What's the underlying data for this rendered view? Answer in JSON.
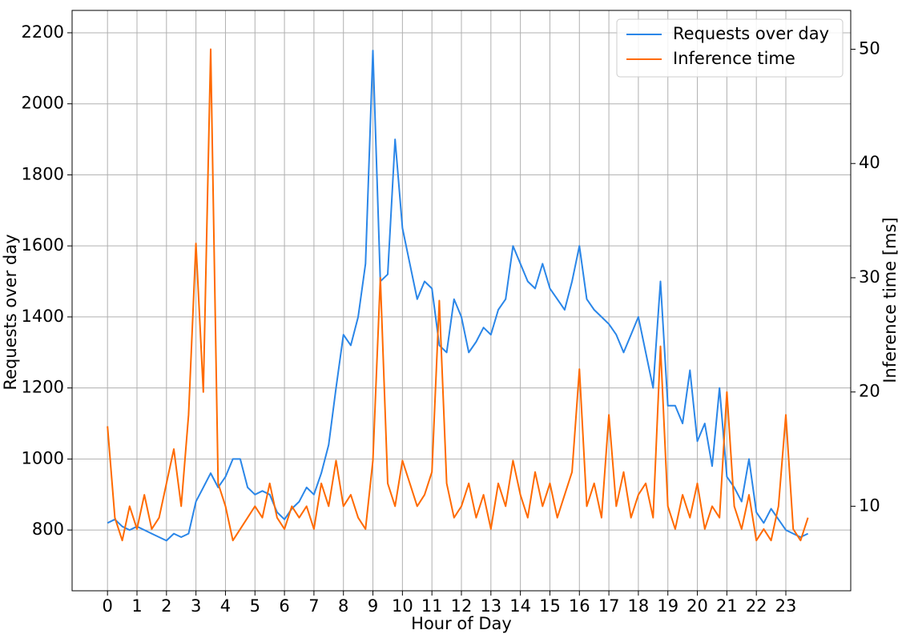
{
  "chart_data": {
    "type": "line",
    "x_label": "Hour of Day",
    "y_label": "Requests over day",
    "y2_label": "Inference time [ms]",
    "x": [
      0,
      0.25,
      0.5,
      0.75,
      1,
      1.25,
      1.5,
      1.75,
      2,
      2.25,
      2.5,
      2.75,
      3,
      3.25,
      3.5,
      3.75,
      4,
      4.25,
      4.5,
      4.75,
      5,
      5.25,
      5.5,
      5.75,
      6,
      6.25,
      6.5,
      6.75,
      7,
      7.25,
      7.5,
      7.75,
      8,
      8.25,
      8.5,
      8.75,
      9,
      9.25,
      9.5,
      9.75,
      10,
      10.25,
      10.5,
      10.75,
      11,
      11.25,
      11.5,
      11.75,
      12,
      12.25,
      12.5,
      12.75,
      13,
      13.25,
      13.5,
      13.75,
      14,
      14.25,
      14.5,
      14.75,
      15,
      15.25,
      15.5,
      15.75,
      16,
      16.25,
      16.5,
      16.75,
      17,
      17.25,
      17.5,
      17.75,
      18,
      18.25,
      18.5,
      18.75,
      19,
      19.25,
      19.5,
      19.75,
      20,
      20.25,
      20.5,
      20.75,
      21,
      21.25,
      21.5,
      21.75,
      22,
      22.25,
      22.5,
      22.75,
      23,
      23.25,
      23.5,
      23.75
    ],
    "series": [
      {
        "name": "Requests over day",
        "color": "#2a86e8",
        "axis": "y",
        "values": [
          820,
          830,
          810,
          800,
          810,
          800,
          790,
          780,
          770,
          790,
          780,
          790,
          880,
          920,
          960,
          920,
          950,
          1000,
          1000,
          920,
          900,
          910,
          900,
          850,
          830,
          860,
          880,
          920,
          900,
          960,
          1040,
          1200,
          1350,
          1320,
          1400,
          1550,
          2150,
          1500,
          1520,
          1900,
          1650,
          1550,
          1450,
          1500,
          1480,
          1320,
          1300,
          1450,
          1400,
          1300,
          1330,
          1370,
          1350,
          1420,
          1450,
          1600,
          1550,
          1500,
          1480,
          1550,
          1480,
          1450,
          1420,
          1500,
          1600,
          1450,
          1420,
          1400,
          1380,
          1350,
          1300,
          1350,
          1400,
          1300,
          1200,
          1500,
          1150,
          1150,
          1100,
          1250,
          1050,
          1100,
          980,
          1200,
          950,
          920,
          880,
          1000,
          850,
          820,
          860,
          830,
          800,
          790,
          780,
          790
        ]
      },
      {
        "name": "Inference time",
        "color": "#ff6a00",
        "axis": "y2",
        "values": [
          17,
          9,
          7,
          10,
          8,
          11,
          8,
          9,
          12,
          15,
          10,
          18,
          33,
          20,
          50,
          12,
          10,
          7,
          8,
          9,
          10,
          9,
          12,
          9,
          8,
          10,
          9,
          10,
          8,
          12,
          10,
          14,
          10,
          11,
          9,
          8,
          14,
          30,
          12,
          10,
          14,
          12,
          10,
          11,
          13,
          28,
          12,
          9,
          10,
          12,
          9,
          11,
          8,
          12,
          10,
          14,
          11,
          9,
          13,
          10,
          12,
          9,
          11,
          13,
          22,
          10,
          12,
          9,
          18,
          10,
          13,
          9,
          11,
          12,
          9,
          24,
          10,
          8,
          11,
          9,
          12,
          8,
          10,
          9,
          20,
          10,
          8,
          11,
          7,
          8,
          7,
          10,
          18,
          8,
          7,
          9
        ]
      }
    ],
    "xlim": [
      -1.2,
      25.2
    ],
    "xticks": [
      0,
      1,
      2,
      3,
      4,
      5,
      6,
      7,
      8,
      9,
      10,
      11,
      12,
      13,
      14,
      15,
      16,
      17,
      18,
      19,
      20,
      21,
      22,
      23
    ],
    "ylim": [
      629,
      2263
    ],
    "yticks": [
      800,
      1000,
      1200,
      1400,
      1600,
      1800,
      2000,
      2200
    ],
    "y2lim": [
      2.6,
      53.4
    ],
    "y2ticks": [
      10,
      20,
      30,
      40,
      50
    ],
    "grid": true,
    "legend": "upper right"
  }
}
